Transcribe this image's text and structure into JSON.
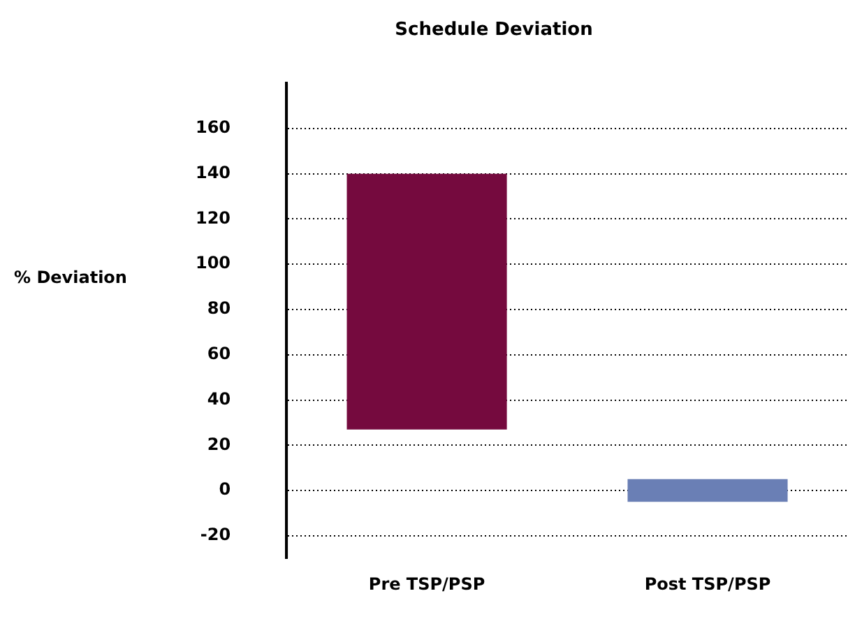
{
  "chart_data": {
    "type": "bar",
    "title": "Schedule Deviation",
    "ylabel": "% Deviation",
    "categories": [
      "Pre TSP/PSP",
      "Post TSP/PSP"
    ],
    "values": [
      113,
      10
    ],
    "base": [
      27,
      -5
    ],
    "colors": [
      "#750a3e",
      "#6a7fb5"
    ],
    "ylim": [
      -30,
      180
    ],
    "yticks": [
      -20,
      0,
      20,
      40,
      60,
      80,
      100,
      120,
      140,
      160
    ],
    "grid": "y"
  }
}
